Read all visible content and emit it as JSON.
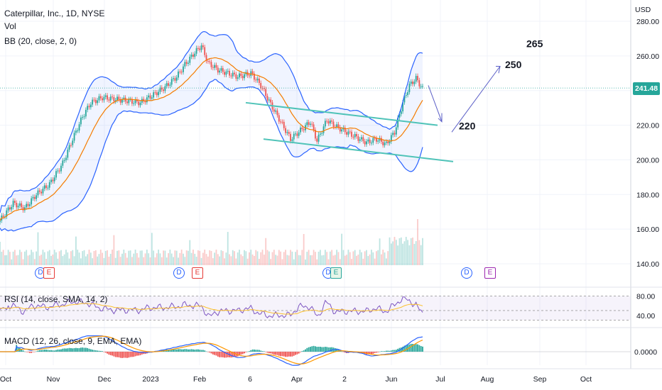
{
  "header": {
    "symbol": "Caterpillar, Inc., 1D, NYSE",
    "vol": "Vol",
    "bb": "BB (20, close, 2, 0)",
    "currency": "USD"
  },
  "rsi_label": "RSI (14, close, SMA, 14, 2)",
  "macd_label": "MACD (12, 26, close, 9, EMA, EMA)",
  "last_price": "241.48",
  "colors": {
    "up": "#26a69a",
    "down": "#ef5350",
    "bb": "#2962ff",
    "basis": "#f57c00",
    "channel": "#4fc3b8",
    "rsi": "#7e57c2",
    "signal": "#ff9800",
    "macd": "#2962ff"
  },
  "price_ticks": [
    "280.00",
    "260.00",
    "240.00",
    "220.00",
    "200.00",
    "180.00",
    "160.00",
    "140.00"
  ],
  "rsi_ticks": [
    "80.00",
    "40.00"
  ],
  "macd_ticks": [
    "0.0000"
  ],
  "time_labels": [
    "Oct",
    "Nov",
    "Dec",
    "2023",
    "Feb",
    "6",
    "Apr",
    "2",
    "Jun",
    "Jul",
    "Aug",
    "Sep",
    "Oct"
  ],
  "annotations": [
    "265",
    "250",
    "220"
  ],
  "events": {
    "d1": "D",
    "e1": "E",
    "d2": "D",
    "e2": "E",
    "d3": "D",
    "e3": "E",
    "d4": "D",
    "e4": "E"
  },
  "chart_data": {
    "type": "candlestick",
    "title": "Caterpillar, Inc., 1D, NYSE",
    "ylim": [
      135,
      280
    ],
    "last_price": 241.48,
    "close_series_approx": [
      [
        0,
        165
      ],
      [
        8,
        175
      ],
      [
        15,
        172
      ],
      [
        22,
        180
      ],
      [
        30,
        186
      ],
      [
        38,
        198
      ],
      [
        44,
        212
      ],
      [
        50,
        225
      ],
      [
        55,
        233
      ],
      [
        62,
        236
      ],
      [
        70,
        235
      ],
      [
        78,
        234
      ],
      [
        85,
        233
      ],
      [
        92,
        237
      ],
      [
        100,
        242
      ],
      [
        107,
        248
      ],
      [
        112,
        255
      ],
      [
        118,
        262
      ],
      [
        122,
        266
      ],
      [
        126,
        256
      ],
      [
        132,
        252
      ],
      [
        138,
        250
      ],
      [
        144,
        248
      ],
      [
        152,
        250
      ],
      [
        158,
        243
      ],
      [
        164,
        232
      ],
      [
        170,
        222
      ],
      [
        176,
        212
      ],
      [
        182,
        217
      ],
      [
        188,
        222
      ],
      [
        192,
        211
      ],
      [
        198,
        223
      ],
      [
        204,
        219
      ],
      [
        210,
        216
      ],
      [
        216,
        213
      ],
      [
        222,
        210
      ],
      [
        228,
        212
      ],
      [
        234,
        209
      ],
      [
        239,
        216
      ],
      [
        244,
        233
      ],
      [
        248,
        243
      ],
      [
        252,
        247
      ],
      [
        256,
        241
      ]
    ],
    "trendlines": [
      {
        "name": "upper channel",
        "from": [
          346,
          233
        ],
        "to": [
          616,
          220
        ]
      },
      {
        "name": "lower channel",
        "from": [
          371,
          212
        ],
        "to": [
          638,
          199
        ]
      }
    ],
    "targets": [
      265,
      250,
      220
    ]
  }
}
